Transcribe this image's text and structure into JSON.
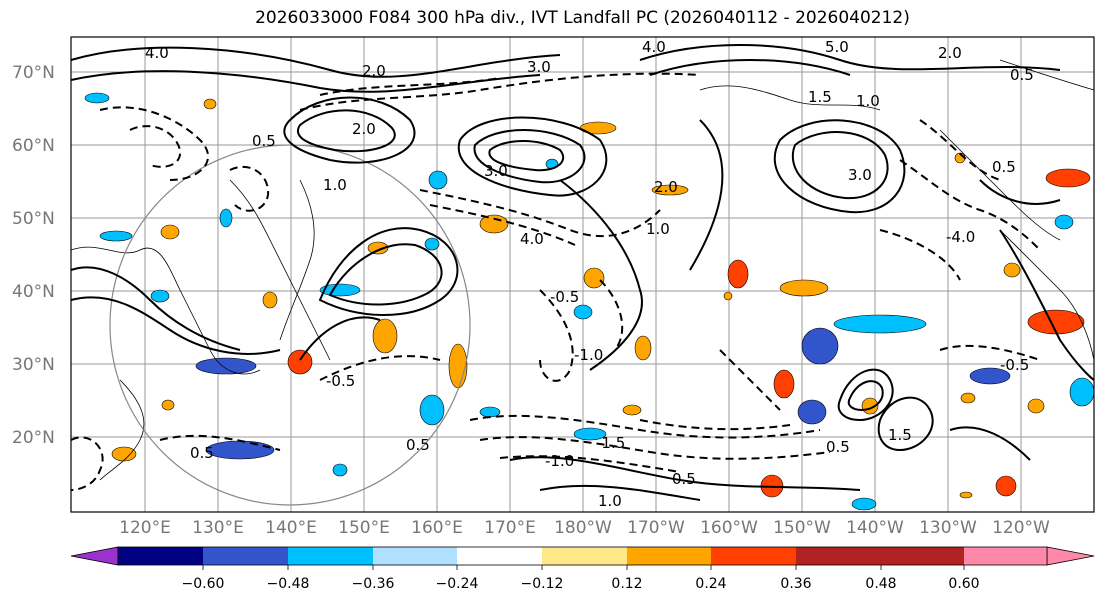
{
  "title": "2026033000 F084 300 hPa div., IVT Landfall PC (2026040112 - 2026040212)",
  "map": {
    "lat_labels": [
      "70°N",
      "60°N",
      "50°N",
      "40°N",
      "30°N",
      "20°N"
    ],
    "lon_labels": [
      "120°E",
      "130°E",
      "140°E",
      "150°E",
      "160°E",
      "170°E",
      "180°W",
      "170°W",
      "160°W",
      "150°W",
      "140°W",
      "130°W",
      "120°W"
    ],
    "contour_labels": [
      "4.0",
      "2.0",
      "3.0",
      "2.0",
      "1.0",
      "0.5",
      "4.0",
      "5.0",
      "2.0",
      "0.5",
      "1.0",
      "1.5",
      "3.0",
      "0.5",
      "-0.5",
      "-1.0",
      "-1.0",
      "-1.5",
      "1.0",
      "0.5",
      "0.5",
      "0.5",
      "-0.5",
      "-0.5",
      "1.5",
      "0.5",
      "1.0",
      "2.0",
      "4.0",
      "-4.0",
      "3.0"
    ]
  },
  "colorbar": {
    "ticks": [
      "−0.60",
      "−0.48",
      "−0.36",
      "−0.24",
      "−0.12",
      "0.12",
      "0.24",
      "0.36",
      "0.48",
      "0.60"
    ],
    "colors": [
      "#9933cc",
      "#000080",
      "#3355cc",
      "#00bfff",
      "#b0e0ff",
      "#ffffff",
      "#ffe888",
      "#ffa500",
      "#ff4000",
      "#b22222",
      "#ff88aa"
    ]
  }
}
